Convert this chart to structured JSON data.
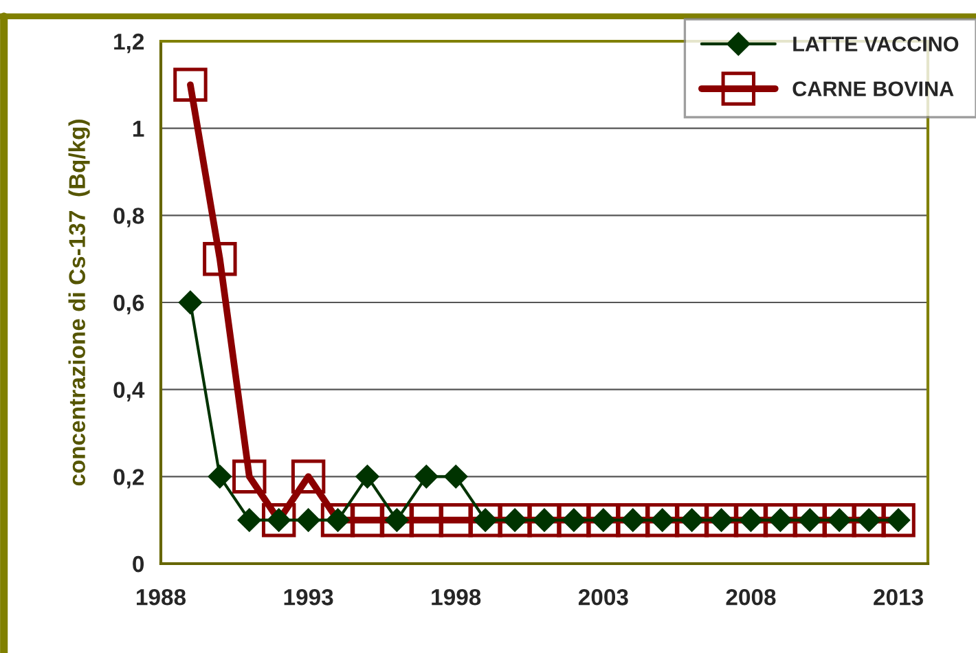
{
  "chart_data": {
    "type": "line",
    "ylabel": "concentrazione di Cs-137  (Bq/kg)",
    "x": [
      1989,
      1990,
      1991,
      1992,
      1993,
      1994,
      1995,
      1996,
      1997,
      1998,
      1999,
      2000,
      2001,
      2002,
      2003,
      2004,
      2005,
      2006,
      2007,
      2008,
      2009,
      2010,
      2011,
      2012,
      2013
    ],
    "series": [
      {
        "name": "LATTE VACCINO",
        "color": "#003300",
        "marker": "diamond",
        "values": [
          0.6,
          0.2,
          0.1,
          0.1,
          0.1,
          0.1,
          0.2,
          0.1,
          0.2,
          0.2,
          0.1,
          0.1,
          0.1,
          0.1,
          0.1,
          0.1,
          0.1,
          0.1,
          0.1,
          0.1,
          0.1,
          0.1,
          0.1,
          0.1,
          0.1
        ]
      },
      {
        "name": "CARNE BOVINA",
        "color": "#8b0000",
        "marker": "square",
        "values": [
          1.1,
          0.7,
          0.2,
          0.1,
          0.2,
          0.1,
          0.1,
          0.1,
          0.1,
          0.1,
          0.1,
          0.1,
          0.1,
          0.1,
          0.1,
          0.1,
          0.1,
          0.1,
          0.1,
          0.1,
          0.1,
          0.1,
          0.1,
          0.1,
          0.1
        ]
      }
    ],
    "xlim": [
      1988,
      2014
    ],
    "xticks": [
      1988,
      1993,
      1998,
      2003,
      2008,
      2013
    ],
    "ylim": [
      0,
      1.2
    ],
    "yticks": [
      0,
      {
        "value": 0.2,
        "label": "0,2"
      },
      {
        "value": 0.4,
        "label": "0,4"
      },
      {
        "value": 0.6,
        "label": "0,6"
      },
      {
        "value": 0.8,
        "label": "0,8"
      },
      1,
      {
        "value": 1.2,
        "label": "1,2"
      }
    ],
    "grid": "y",
    "legend": "top right",
    "line_style": "solid"
  }
}
